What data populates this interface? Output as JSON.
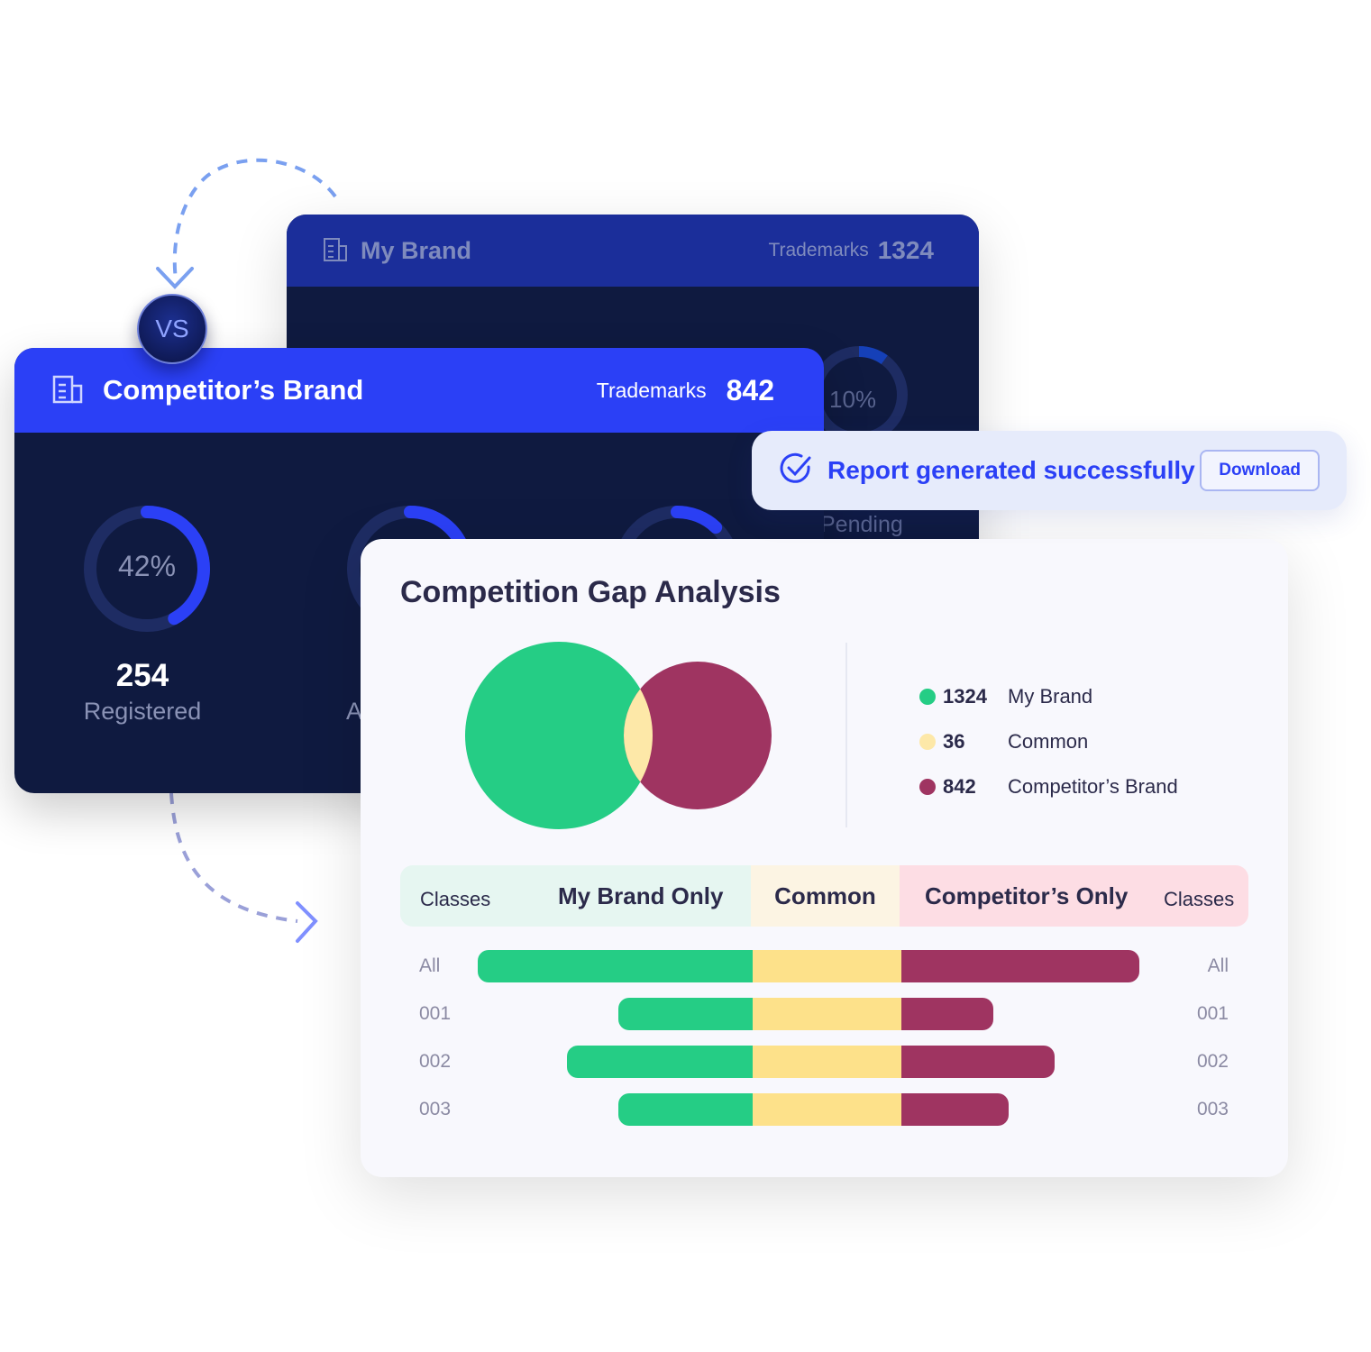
{
  "my_brand_card": {
    "title": "My Brand",
    "trademarks_label": "Trademarks",
    "trademarks": "1324",
    "donut_percent": "10%",
    "donut_value": 0.1,
    "status_label": "Pending"
  },
  "vs_label": "VS",
  "competitor_card": {
    "title": "Competitor’s Brand",
    "trademarks_label": "Trademarks",
    "trademarks": "842",
    "stats": [
      {
        "percent": "42%",
        "value": 0.42,
        "count": "254",
        "label": "Registered"
      },
      {
        "label_partial": "A",
        "value": 0.18
      },
      {
        "value": 0.12
      }
    ]
  },
  "toast": {
    "message": "Report generated successfully",
    "download_label": "Download"
  },
  "gap": {
    "title": "Competition Gap Analysis",
    "legend": [
      {
        "count": "1324",
        "label": "My Brand",
        "color": "#25cd85"
      },
      {
        "count": "36",
        "label": "Common",
        "color": "#fde8a8"
      },
      {
        "count": "842",
        "label": "Competitor’s Brand",
        "color": "#9f3461"
      }
    ],
    "header": {
      "left_classes": "Classes",
      "my_only": "My Brand Only",
      "common": "Common",
      "comp_only": "Competitor’s Only",
      "right_classes": "Classes"
    },
    "colors": {
      "my": "#25cd85",
      "common": "#fde18a",
      "comp": "#9f3461"
    },
    "rows": [
      {
        "label": "All",
        "my": 305,
        "common": 165,
        "comp": 264
      },
      {
        "label": "001",
        "my": 149,
        "common": 165,
        "comp": 102
      },
      {
        "label": "002",
        "my": 206,
        "common": 165,
        "comp": 170
      },
      {
        "label": "003",
        "my": 149,
        "common": 165,
        "comp": 119
      }
    ]
  }
}
